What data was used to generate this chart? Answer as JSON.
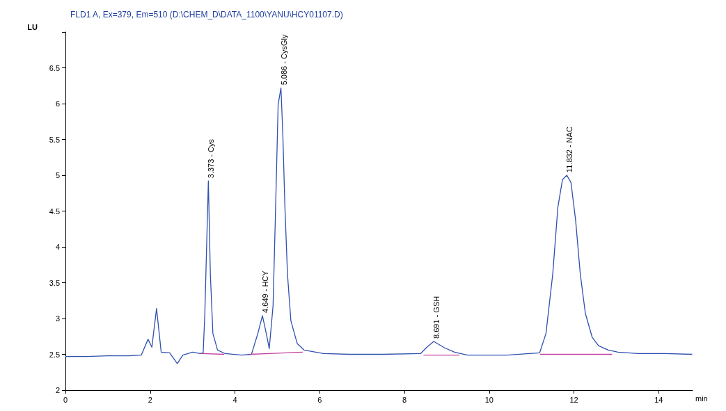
{
  "chart_data": {
    "type": "line",
    "title": "FLD1 A, Ex=379, Em=510 (D:\\CHEM_D\\DATA_1100\\YANU\\HCY01107.D)",
    "xlabel": "min",
    "ylabel": "LU",
    "xlim": [
      0,
      14.8
    ],
    "xticks": [
      0,
      2,
      4,
      6,
      8,
      10,
      12,
      14
    ],
    "ylim": [
      2,
      7
    ],
    "yticks": [
      2,
      2.5,
      3,
      3.5,
      4,
      4.5,
      5,
      5.5,
      6,
      6.5,
      {
        "value": 7,
        "label": null
      }
    ],
    "grid": false,
    "marker": "none",
    "line_style": "solid",
    "series": [
      {
        "color": "#3050b0",
        "x": [
          0,
          0.5,
          1.0,
          1.5,
          1.79,
          1.95,
          2.04,
          2.15,
          2.26,
          2.46,
          2.64,
          2.77,
          3.0,
          3.18,
          3.25,
          3.29,
          3.373,
          3.42,
          3.48,
          3.59,
          3.77,
          4.16,
          4.39,
          4.54,
          4.649,
          4.74,
          4.81,
          4.9,
          4.96,
          5.02,
          5.086,
          5.13,
          5.18,
          5.24,
          5.32,
          5.47,
          5.63,
          6.09,
          6.71,
          7.48,
          8.38,
          8.53,
          8.691,
          8.95,
          9.18,
          9.49,
          10.42,
          11.19,
          11.34,
          11.5,
          11.62,
          11.73,
          11.832,
          11.93,
          12.04,
          12.15,
          12.27,
          12.43,
          12.58,
          12.81,
          13.04,
          13.51,
          14.13,
          14.79
        ],
        "values": [
          2.47,
          2.47,
          2.48,
          2.48,
          2.49,
          2.71,
          2.6,
          3.14,
          2.53,
          2.52,
          2.37,
          2.49,
          2.53,
          2.51,
          2.52,
          3.07,
          4.92,
          3.62,
          2.79,
          2.56,
          2.51,
          2.49,
          2.5,
          2.79,
          3.04,
          2.79,
          2.58,
          3.18,
          4.55,
          5.99,
          6.22,
          5.57,
          4.55,
          3.62,
          2.97,
          2.65,
          2.56,
          2.51,
          2.5,
          2.5,
          2.51,
          2.6,
          2.68,
          2.59,
          2.53,
          2.49,
          2.49,
          2.52,
          2.79,
          3.62,
          4.55,
          4.94,
          5.0,
          4.9,
          4.37,
          3.62,
          3.07,
          2.74,
          2.62,
          2.56,
          2.53,
          2.51,
          2.51,
          2.5
        ]
      },
      {
        "color": "#c040a0",
        "x": [
          3.2,
          3.75
        ],
        "values": [
          2.51,
          2.5
        ]
      },
      {
        "color": "#c040a0",
        "x": [
          4.36,
          4.81,
          5.6
        ],
        "values": [
          2.5,
          2.51,
          2.53
        ]
      },
      {
        "color": "#c040a0",
        "x": [
          8.45,
          9.3
        ],
        "values": [
          2.49,
          2.49
        ]
      },
      {
        "color": "#c040a0",
        "x": [
          11.2,
          12.9
        ],
        "values": [
          2.5,
          2.5
        ]
      }
    ],
    "annotations": [
      {
        "text": "3.373 - Cys",
        "x": 3.373,
        "y": 4.92
      },
      {
        "text": "4.649 - HCY",
        "x": 4.649,
        "y": 3.04
      },
      {
        "text": "5.086 - CysGly",
        "x": 5.086,
        "y": 6.22
      },
      {
        "text": "8.691 - GSH",
        "x": 8.691,
        "y": 2.68
      },
      {
        "text": "11.832 - NAC",
        "x": 11.832,
        "y": 5.0
      }
    ]
  }
}
